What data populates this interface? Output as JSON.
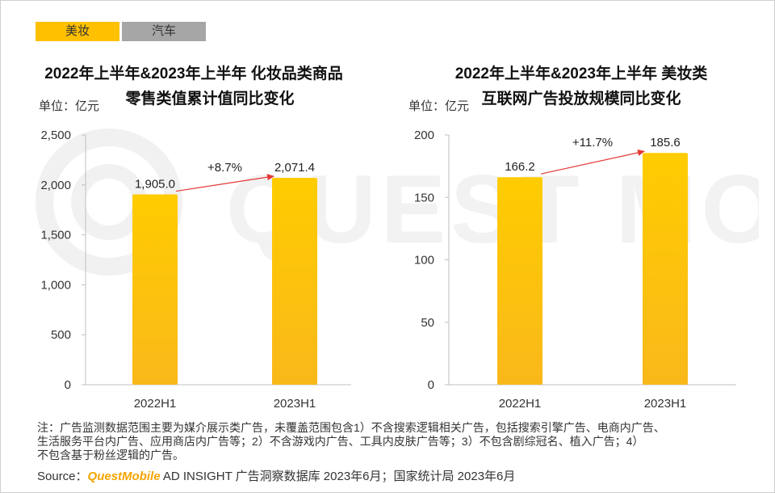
{
  "tabs": [
    {
      "label": "美妆",
      "active": true
    },
    {
      "label": "汽车",
      "active": false
    }
  ],
  "watermark": {
    "text": "QUEST MOBILE"
  },
  "colors": {
    "bar_top": "#ffcc00",
    "bar_bottom": "#f9b81a",
    "arrow": "#e53935",
    "active_tab": "#ffc000",
    "inactive_tab": "#a6a6a6",
    "axis": "#bfbfbf"
  },
  "chart_data": [
    {
      "type": "bar",
      "title_line1": "2022年上半年&2023年上半年 化妆品类商品",
      "title_line2": "零售类值累计值同比变化",
      "unit": "单位：亿元",
      "categories": [
        "2022H1",
        "2023H1"
      ],
      "values": [
        1905.0,
        2071.4
      ],
      "value_labels": [
        "1,905.0",
        "2,071.4"
      ],
      "ylim": [
        0,
        2500
      ],
      "yticks": [
        0,
        500,
        1000,
        1500,
        2000,
        2500
      ],
      "ytick_labels": [
        "0",
        "500",
        "1,000",
        "1,500",
        "2,000",
        "2,500"
      ],
      "growth_label": "+8.7%",
      "grid": false,
      "legend": "none"
    },
    {
      "type": "bar",
      "title_line1": "2022年上半年&2023年上半年 美妆类",
      "title_line2": "互联网广告投放规模同比变化",
      "unit": "单位：亿元",
      "categories": [
        "2022H1",
        "2023H1"
      ],
      "values": [
        166.2,
        185.6
      ],
      "value_labels": [
        "166.2",
        "185.6"
      ],
      "ylim": [
        0,
        200
      ],
      "yticks": [
        0,
        50,
        100,
        150,
        200
      ],
      "ytick_labels": [
        "0",
        "50",
        "100",
        "150",
        "200"
      ],
      "growth_label": "+11.7%",
      "grid": false,
      "legend": "none"
    }
  ],
  "note": {
    "line1": "注：广告监测数据范围主要为媒介展示类广告，未覆盖范围包含1）不含搜索逻辑相关广告，包括搜索引擎广告、电商内广告、",
    "line2": "生活服务平台内广告、应用商店内广告等；2）不含游戏内广告、工具内皮肤广告等；3）不包含剧综冠名、植入广告；4）",
    "line3": "不包含基于粉丝逻辑的广告。"
  },
  "source": {
    "prefix": "Source：",
    "brand": "QuestMobile",
    "rest": " AD INSIGHT 广告洞察数据库 2023年6月；国家统计局 2023年6月"
  }
}
